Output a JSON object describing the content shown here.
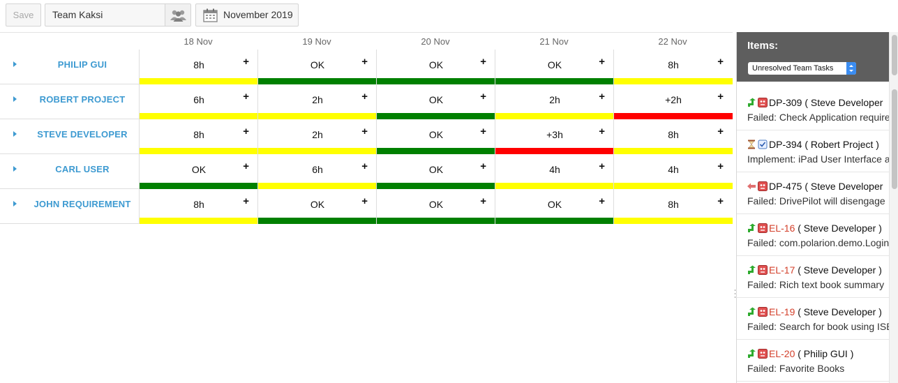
{
  "toolbar": {
    "save_label": "Save",
    "team": "Team Kaksi",
    "month": "November 2019"
  },
  "dates": [
    "18 Nov",
    "19 Nov",
    "20 Nov",
    "21 Nov",
    "22 Nov"
  ],
  "colors": {
    "green": "#008000",
    "yellow": "#ffff00",
    "red": "#ff0000",
    "name_blue": "#3d9ad1",
    "panel_header": "#5e5e5e"
  },
  "rows": [
    {
      "name": "PHILIP GUI",
      "cells": [
        {
          "value": "8h",
          "status": "yellow"
        },
        {
          "value": "OK",
          "status": "green"
        },
        {
          "value": "OK",
          "status": "green"
        },
        {
          "value": "OK",
          "status": "green"
        },
        {
          "value": "8h",
          "status": "yellow"
        }
      ]
    },
    {
      "name": "ROBERT PROJECT",
      "cells": [
        {
          "value": "6h",
          "status": "yellow"
        },
        {
          "value": "2h",
          "status": "yellow"
        },
        {
          "value": "OK",
          "status": "green"
        },
        {
          "value": "2h",
          "status": "yellow"
        },
        {
          "value": "+2h",
          "status": "red"
        }
      ]
    },
    {
      "name": "STEVE DEVELOPER",
      "cells": [
        {
          "value": "8h",
          "status": "yellow"
        },
        {
          "value": "2h",
          "status": "yellow"
        },
        {
          "value": "OK",
          "status": "green"
        },
        {
          "value": "+3h",
          "status": "red"
        },
        {
          "value": "8h",
          "status": "yellow"
        }
      ]
    },
    {
      "name": "CARL USER",
      "cells": [
        {
          "value": "OK",
          "status": "green"
        },
        {
          "value": "6h",
          "status": "yellow"
        },
        {
          "value": "OK",
          "status": "green"
        },
        {
          "value": "4h",
          "status": "yellow"
        },
        {
          "value": "4h",
          "status": "yellow"
        }
      ]
    },
    {
      "name": "JOHN REQUIREMENT",
      "cells": [
        {
          "value": "8h",
          "status": "yellow"
        },
        {
          "value": "OK",
          "status": "green"
        },
        {
          "value": "OK",
          "status": "green"
        },
        {
          "value": "OK",
          "status": "green"
        },
        {
          "value": "8h",
          "status": "yellow"
        }
      ]
    }
  ],
  "plus_label": "+",
  "panel": {
    "title": "Items:",
    "filter": "Unresolved Team Tasks",
    "items": [
      {
        "icon": "green-arrow-icon",
        "id": "DP-309",
        "id_color": "black",
        "owner": " ( Steve Developer ",
        "text": "Failed: Check Application require"
      },
      {
        "icon": "hourglass-icon",
        "id": "DP-394",
        "id_color": "black",
        "owner": " ( Robert Project )",
        "text": "Implement: iPad User Interface a"
      },
      {
        "icon": "red-arrow-icon",
        "id": "DP-475",
        "id_color": "black",
        "owner": " ( Steve Developer",
        "text": "Failed: DrivePilot will disengage"
      },
      {
        "icon": "green-arrow-icon",
        "id": "EL-16",
        "id_color": "red",
        "owner": " ( Steve Developer )",
        "text": "Failed: com.polarion.demo.Login"
      },
      {
        "icon": "green-arrow-icon",
        "id": "EL-17",
        "id_color": "red",
        "owner": " ( Steve Developer )",
        "text": "Failed: Rich text book summary"
      },
      {
        "icon": "green-arrow-icon",
        "id": "EL-19",
        "id_color": "red",
        "owner": " ( Steve Developer )",
        "text": "Failed: Search for book using ISB"
      },
      {
        "icon": "green-arrow-icon",
        "id": "EL-20",
        "id_color": "red",
        "owner": " ( Philip GUI )",
        "text": "Failed: Favorite Books"
      }
    ]
  }
}
